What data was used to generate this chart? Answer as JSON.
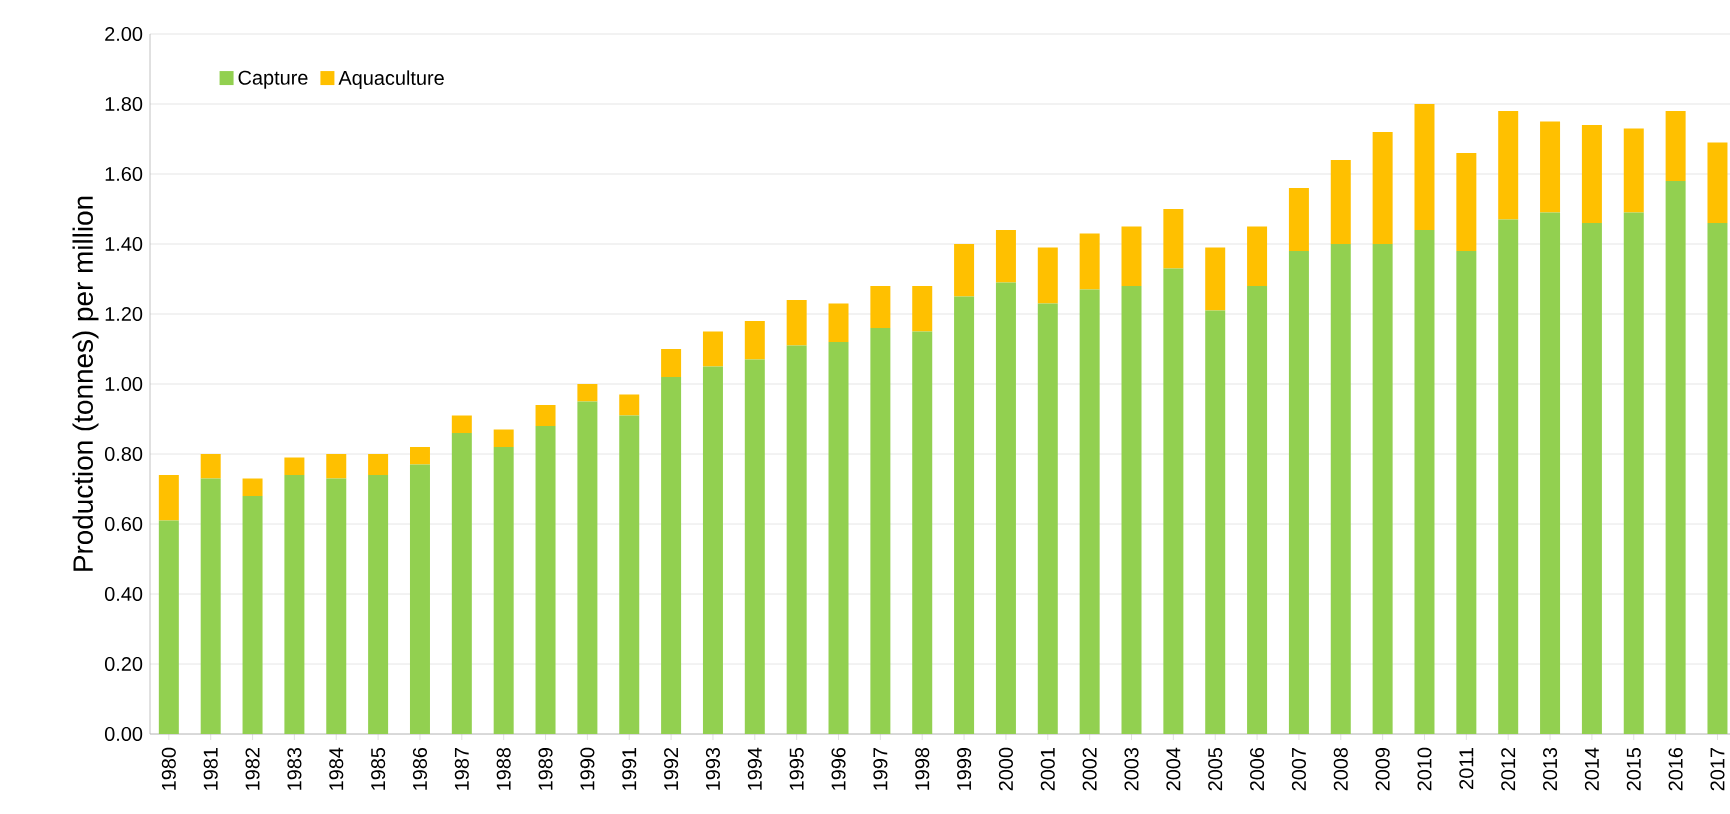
{
  "chart_data": {
    "type": "bar",
    "stacked": true,
    "ylabel": "Production (tonnes) per million",
    "categories": [
      "1980",
      "1981",
      "1982",
      "1983",
      "1984",
      "1985",
      "1986",
      "1987",
      "1988",
      "1989",
      "1990",
      "1991",
      "1992",
      "1993",
      "1994",
      "1995",
      "1996",
      "1997",
      "1998",
      "1999",
      "2000",
      "2001",
      "2002",
      "2003",
      "2004",
      "2005",
      "2006",
      "2007",
      "2008",
      "2009",
      "2010",
      "2011",
      "2012",
      "2013",
      "2014",
      "2015",
      "2016",
      "2017"
    ],
    "series": [
      {
        "name": "Capture",
        "color": "#92d050",
        "values": [
          0.61,
          0.73,
          0.68,
          0.74,
          0.73,
          0.74,
          0.77,
          0.86,
          0.82,
          0.88,
          0.95,
          0.91,
          1.02,
          1.05,
          1.07,
          1.11,
          1.12,
          1.16,
          1.15,
          1.25,
          1.29,
          1.23,
          1.27,
          1.28,
          1.33,
          1.21,
          1.28,
          1.38,
          1.4,
          1.4,
          1.44,
          1.38,
          1.47,
          1.49,
          1.46,
          1.49,
          1.58,
          1.46
        ]
      },
      {
        "name": "Aquaculture",
        "color": "#ffc000",
        "values": [
          0.13,
          0.07,
          0.05,
          0.05,
          0.07,
          0.06,
          0.05,
          0.05,
          0.05,
          0.06,
          0.05,
          0.06,
          0.08,
          0.1,
          0.11,
          0.13,
          0.11,
          0.12,
          0.13,
          0.15,
          0.15,
          0.16,
          0.16,
          0.17,
          0.17,
          0.18,
          0.17,
          0.18,
          0.24,
          0.32,
          0.36,
          0.28,
          0.31,
          0.26,
          0.28,
          0.24,
          0.2,
          0.23
        ]
      }
    ],
    "ylim": [
      0,
      2
    ],
    "yticks": [
      {
        "value": 0,
        "label": "0.00"
      },
      {
        "value": 0.2,
        "label": "0.20"
      },
      {
        "value": 0.4,
        "label": "0.40"
      },
      {
        "value": 0.6,
        "label": "0.60"
      },
      {
        "value": 0.8,
        "label": "0.80"
      },
      {
        "value": 1.0,
        "label": "1.00"
      },
      {
        "value": 1.2,
        "label": "1.20"
      },
      {
        "value": 1.4,
        "label": "1.40"
      },
      {
        "value": 1.6,
        "label": "1.60"
      },
      {
        "value": 1.8,
        "label": "1.80"
      },
      {
        "value": 2.0,
        "label": "2.00"
      }
    ],
    "grid": "y",
    "legend": "top left"
  }
}
